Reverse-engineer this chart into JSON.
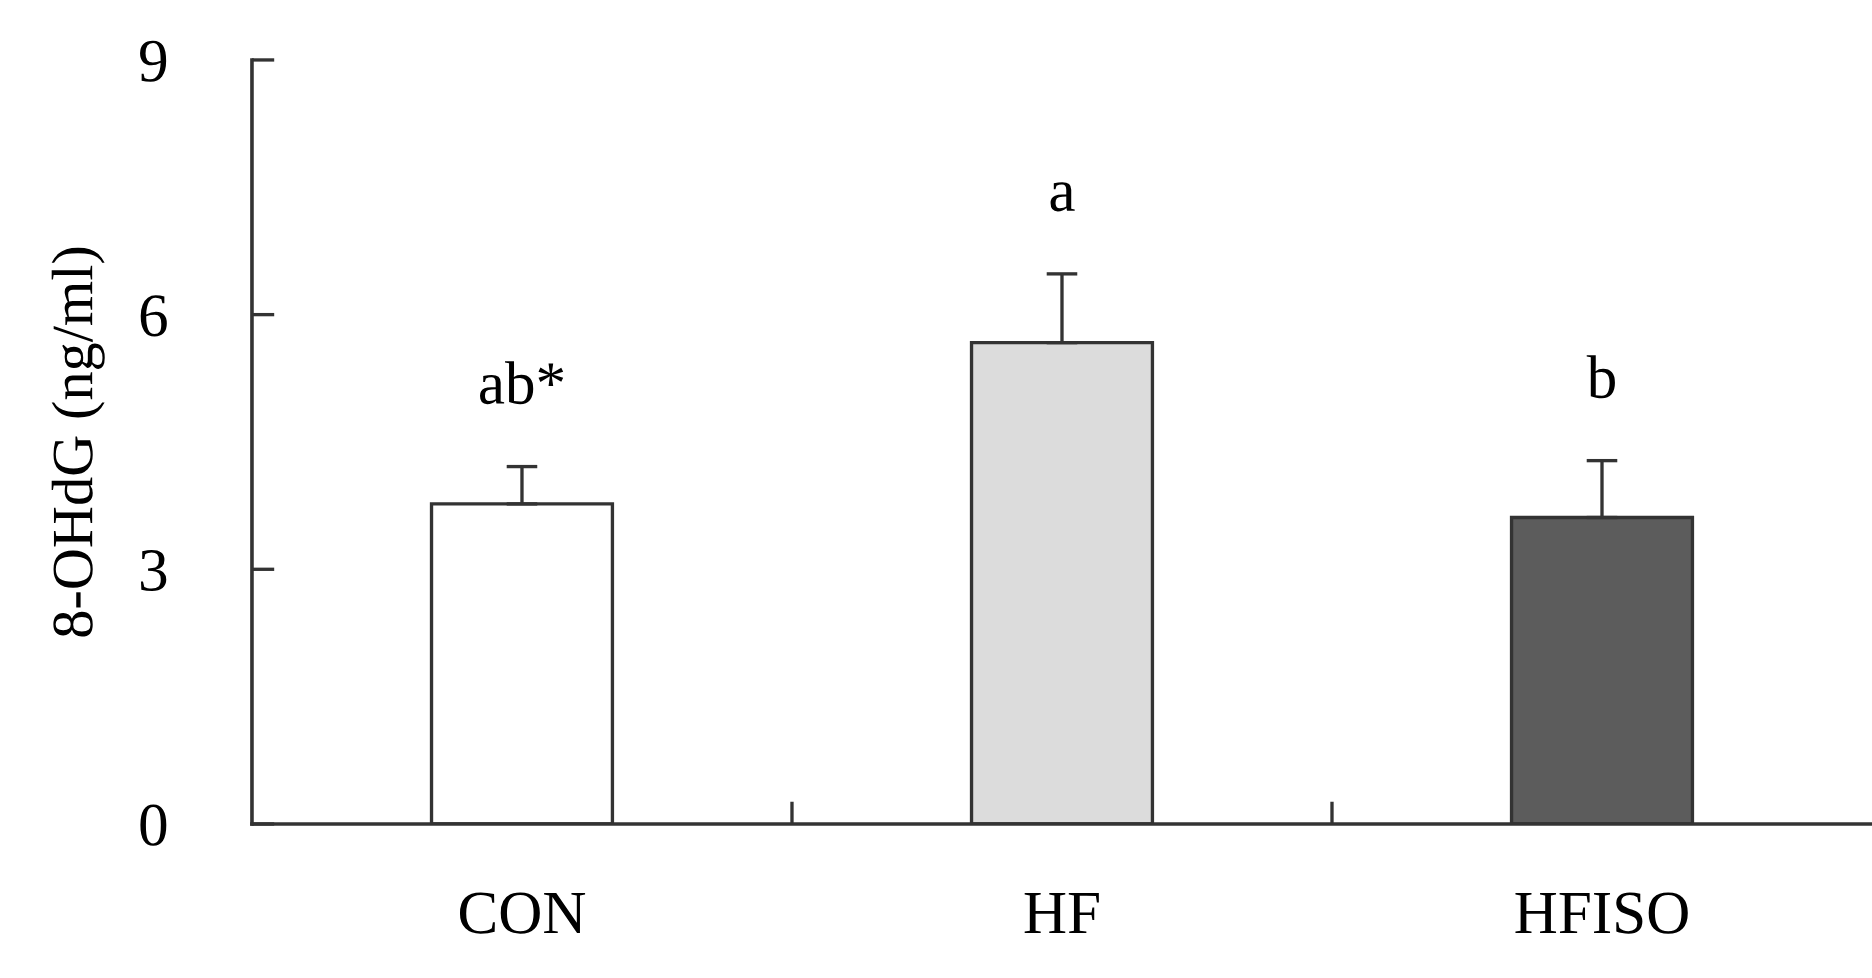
{
  "chart_data": {
    "type": "bar",
    "ylabel": "8-OHdG (ng/ml)",
    "categories": [
      "CON",
      "HF",
      "HFISO"
    ],
    "values": [
      3.77,
      5.67,
      3.61
    ],
    "colors": [
      "#ffffff",
      "#dcdcdc",
      "#5c5c5c"
    ],
    "errors": [
      [
        3.77,
        4.21
      ],
      [
        5.67,
        6.48
      ],
      [
        3.61,
        4.28
      ]
    ],
    "ylim": [
      0,
      9
    ],
    "yticks": [
      0,
      3,
      6,
      9
    ],
    "grid": false,
    "legend": false,
    "annotations": [
      {
        "text": "ab*",
        "x": "CON",
        "y": 4.21
      },
      {
        "text": "a",
        "x": "HF",
        "y": 6.48
      },
      {
        "text": "b",
        "x": "HFISO",
        "y": 4.28
      }
    ]
  }
}
